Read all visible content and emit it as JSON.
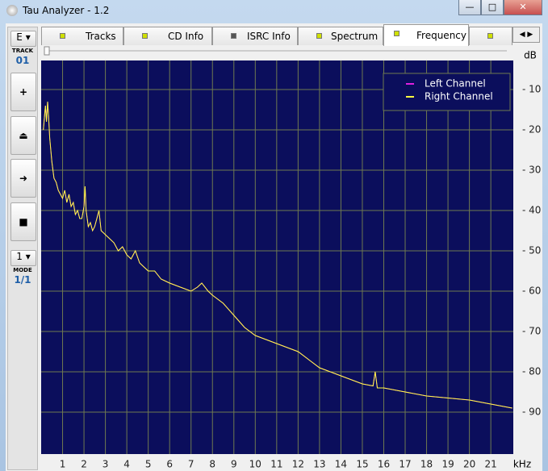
{
  "window": {
    "title": "Tau Analyzer - 1.2"
  },
  "tabs": [
    "Tracks",
    "CD Info",
    "ISRC Info",
    "Spectrum",
    "Frequency"
  ],
  "sidebar": {
    "drive": "E",
    "track_label": "TRACK",
    "track": "01",
    "mode_select": "1",
    "mode_label": "MODE",
    "mode": "1/1"
  },
  "chart": {
    "type": "line",
    "y_unit": "dB",
    "x_unit": "kHz",
    "x": [
      0.1,
      0.2,
      0.25,
      0.3,
      0.35,
      0.4,
      0.5,
      0.6,
      0.7,
      0.8,
      0.9,
      1.0,
      1.1,
      1.2,
      1.3,
      1.4,
      1.5,
      1.6,
      1.7,
      1.8,
      1.9,
      2.0,
      2.05,
      2.1,
      2.2,
      2.3,
      2.4,
      2.5,
      2.6,
      2.7,
      2.8,
      3.0,
      3.2,
      3.4,
      3.6,
      3.8,
      4.0,
      4.2,
      4.4,
      4.6,
      4.8,
      5.0,
      5.3,
      5.6,
      6.0,
      6.5,
      7.0,
      7.3,
      7.5,
      7.8,
      8.0,
      8.5,
      9.0,
      9.5,
      10,
      10.5,
      11,
      11.5,
      12,
      12.5,
      13,
      13.5,
      14,
      14.5,
      15,
      15.5,
      15.6,
      15.7,
      16,
      17,
      18,
      19,
      20,
      21,
      22
    ],
    "series": [
      {
        "name": "Left Channel",
        "color": "#e020e0",
        "values": [
          -20,
          -14,
          -18,
          -13,
          -17,
          -22,
          -28,
          -32,
          -33,
          -35,
          -36,
          -37,
          -35,
          -38,
          -36,
          -39,
          -38,
          -41,
          -40,
          -42,
          -42,
          -39,
          -34,
          -40,
          -44,
          -43,
          -45,
          -44,
          -42,
          -40,
          -45,
          -46,
          -47,
          -48,
          -50,
          -49,
          -51,
          -52,
          -50,
          -53,
          -54,
          -55,
          -55,
          -57,
          -58,
          -59,
          -60,
          -59,
          -58,
          -60,
          -61,
          -63,
          -66,
          -69,
          -71,
          -72,
          -73,
          -74,
          -75,
          -77,
          -79,
          -80,
          -81,
          -82,
          -83,
          -83.5,
          -80,
          -84,
          -84,
          -85,
          -86,
          -86.5,
          -87,
          -88,
          -89
        ]
      },
      {
        "name": "Right Channel",
        "color": "#ffff40",
        "values": [
          -20,
          -14,
          -18,
          -13,
          -17,
          -22,
          -28,
          -32,
          -33,
          -35,
          -36,
          -37,
          -35,
          -38,
          -36,
          -39,
          -38,
          -41,
          -40,
          -42,
          -42,
          -39,
          -34,
          -40,
          -44,
          -43,
          -45,
          -44,
          -42,
          -40,
          -45,
          -46,
          -47,
          -48,
          -50,
          -49,
          -51,
          -52,
          -50,
          -53,
          -54,
          -55,
          -55,
          -57,
          -58,
          -59,
          -60,
          -59,
          -58,
          -60,
          -61,
          -63,
          -66,
          -69,
          -71,
          -72,
          -73,
          -74,
          -75,
          -77,
          -79,
          -80,
          -81,
          -82,
          -83,
          -83.5,
          -80,
          -84,
          -84,
          -85,
          -86,
          -86.5,
          -87,
          -88,
          -89
        ]
      }
    ],
    "xlim": [
      0,
      22.05
    ],
    "ylim": [
      -100.4,
      -2.8
    ],
    "xticks": [
      1,
      2,
      3,
      4,
      5,
      6,
      7,
      8,
      9,
      10,
      11,
      12,
      13,
      14,
      15,
      16,
      17,
      18,
      19,
      20,
      21
    ],
    "yticks": [
      {
        "value": -10,
        "label": "- 10"
      },
      {
        "value": -20,
        "label": "- 20"
      },
      {
        "value": -30,
        "label": "- 30"
      },
      {
        "value": -40,
        "label": "- 40"
      },
      {
        "value": -50,
        "label": "- 50"
      },
      {
        "value": -60,
        "label": "- 60"
      },
      {
        "value": -70,
        "label": "- 70"
      },
      {
        "value": -80,
        "label": "- 80"
      },
      {
        "value": -90,
        "label": "- 90"
      }
    ],
    "grid": true
  }
}
